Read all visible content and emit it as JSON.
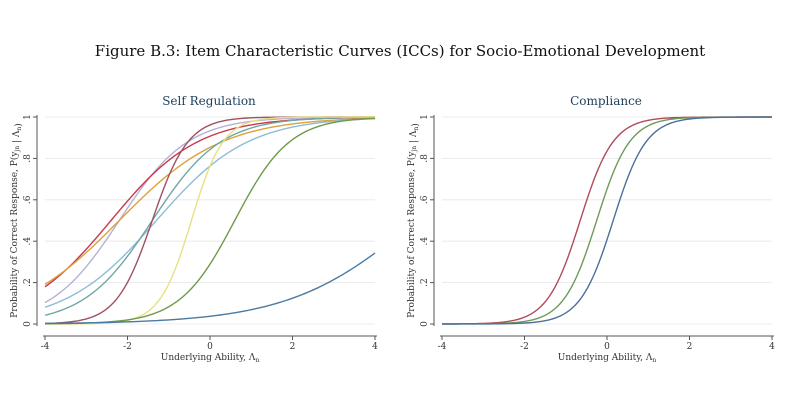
{
  "figure_title": "Figure B.3: Item Characteristic Curves (ICCs) for Socio-Emotional Development",
  "chart_data": [
    {
      "type": "line",
      "title": "Self Regulation",
      "xlabel": "Underlying Ability, Λ",
      "xlabel_sub": "n",
      "ylabel": "Probability of Correct Response, P(y",
      "ylabel_sub": "jn",
      "ylabel_tail": " | Λ",
      "ylabel_sub2": "n",
      "ylabel_end": ")",
      "xlim": [
        -4,
        4
      ],
      "ylim": [
        0,
        1
      ],
      "xticks": [
        "-4",
        "-2",
        "0",
        "2",
        "4"
      ],
      "yticks": [
        "0",
        ".2",
        ".4",
        ".6",
        ".8",
        "1"
      ],
      "grid": true,
      "series": [
        {
          "color": "#b5b0d6",
          "a": 1.2,
          "b": -2.2
        },
        {
          "color": "#c8374f",
          "a": 0.95,
          "b": -2.4
        },
        {
          "color": "#e0a03a",
          "a": 0.8,
          "b": -2.2
        },
        {
          "color": "#8fbcd6",
          "a": 0.9,
          "b": -1.3
        },
        {
          "color": "#6fa8a3",
          "a": 1.2,
          "b": -1.4
        },
        {
          "color": "#a05060",
          "a": 2.3,
          "b": -1.4
        },
        {
          "color": "#e8e080",
          "a": 2.6,
          "b": -0.45
        },
        {
          "color": "#6e9a4a",
          "a": 1.5,
          "b": 0.6
        },
        {
          "color": "#4b7aa2",
          "a": 0.65,
          "b": 5.0
        }
      ]
    },
    {
      "type": "line",
      "title": "Compliance",
      "xlabel": "Underlying Ability, Λ",
      "xlabel_sub": "n",
      "ylabel": "Probability of Correct Response, P(y",
      "ylabel_sub": "jn",
      "ylabel_tail": " | Λ",
      "ylabel_sub2": "n",
      "ylabel_end": ")",
      "xlim": [
        -4,
        4
      ],
      "ylim": [
        0,
        1
      ],
      "xticks": [
        "-4",
        "-2",
        "0",
        "2",
        "4"
      ],
      "yticks": [
        "0",
        ".2",
        ".4",
        ".6",
        ".8",
        "1"
      ],
      "grid": true,
      "series": [
        {
          "color": "#b04a5c",
          "a": 2.5,
          "b": -0.65
        },
        {
          "color": "#6f9a58",
          "a": 2.5,
          "b": -0.25
        },
        {
          "color": "#4b6f9b",
          "a": 2.5,
          "b": 0.15
        }
      ]
    }
  ]
}
